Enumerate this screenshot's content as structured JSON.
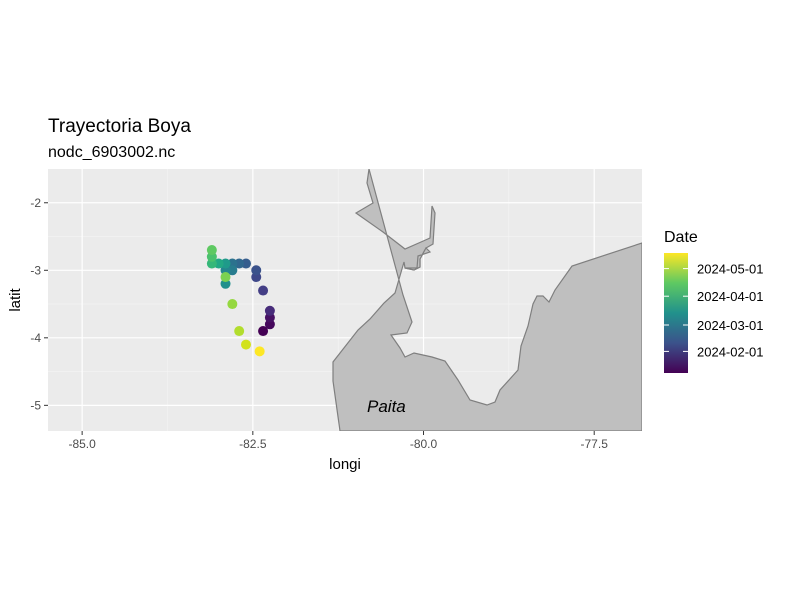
{
  "chart_data": {
    "type": "scatter",
    "title": "Trayectoria Boya",
    "subtitle": "nodc_6903002.nc",
    "xlabel": "longi",
    "ylabel": "latit",
    "xlim": [
      -85.5,
      -76.8
    ],
    "ylim": [
      -5.38,
      -1.5
    ],
    "x_ticks": [
      -85.0,
      -82.5,
      -80.0,
      -77.5
    ],
    "x_tick_labels": [
      "-85.0",
      "-82.5",
      "-80.0",
      "-77.5"
    ],
    "y_ticks": [
      -2,
      -3,
      -4,
      -5
    ],
    "y_tick_labels": [
      "-2",
      "-3",
      "-4",
      "-5"
    ],
    "grid": true,
    "legend": {
      "title": "Date",
      "position": "right",
      "labels": [
        "2024-05-01",
        "2024-04-01",
        "2024-03-01",
        "2024-02-01"
      ],
      "colors_top_to_bottom": [
        "#fde725",
        "#5ec962",
        "#21918c",
        "#3b528b",
        "#440154"
      ]
    },
    "annotations": [
      {
        "text": "Paita",
        "x": -80.5,
        "y": -5.02
      }
    ],
    "land_color": "#bfbfbf",
    "points": [
      {
        "lon": -82.35,
        "lat": -3.9,
        "color": "#440154"
      },
      {
        "lon": -82.25,
        "lat": -3.8,
        "color": "#46085c"
      },
      {
        "lon": -82.25,
        "lat": -3.7,
        "color": "#471164"
      },
      {
        "lon": -82.25,
        "lat": -3.6,
        "color": "#472c7a"
      },
      {
        "lon": -82.35,
        "lat": -3.3,
        "color": "#433e85"
      },
      {
        "lon": -82.45,
        "lat": -3.1,
        "color": "#3f4889"
      },
      {
        "lon": -82.45,
        "lat": -3.0,
        "color": "#3b528b"
      },
      {
        "lon": -82.6,
        "lat": -2.9,
        "color": "#365d8d"
      },
      {
        "lon": -82.7,
        "lat": -2.9,
        "color": "#31688e"
      },
      {
        "lon": -82.8,
        "lat": -2.9,
        "color": "#2c728e"
      },
      {
        "lon": -82.8,
        "lat": -3.0,
        "color": "#287c8e"
      },
      {
        "lon": -82.9,
        "lat": -3.0,
        "color": "#24868e"
      },
      {
        "lon": -82.9,
        "lat": -3.2,
        "color": "#21908d"
      },
      {
        "lon": -82.9,
        "lat": -2.9,
        "color": "#1f9a8a"
      },
      {
        "lon": -83.0,
        "lat": -2.9,
        "color": "#22a884"
      },
      {
        "lon": -83.1,
        "lat": -2.9,
        "color": "#35b779"
      },
      {
        "lon": -83.1,
        "lat": -2.8,
        "color": "#4ac16d"
      },
      {
        "lon": -83.1,
        "lat": -2.7,
        "color": "#5ec962"
      },
      {
        "lon": -82.9,
        "lat": -3.1,
        "color": "#7ad151"
      },
      {
        "lon": -82.8,
        "lat": -3.5,
        "color": "#95d840"
      },
      {
        "lon": -82.7,
        "lat": -3.9,
        "color": "#b2dd2d"
      },
      {
        "lon": -82.6,
        "lat": -4.1,
        "color": "#d2e21b"
      },
      {
        "lon": -82.4,
        "lat": -4.2,
        "color": "#fde725"
      }
    ]
  }
}
